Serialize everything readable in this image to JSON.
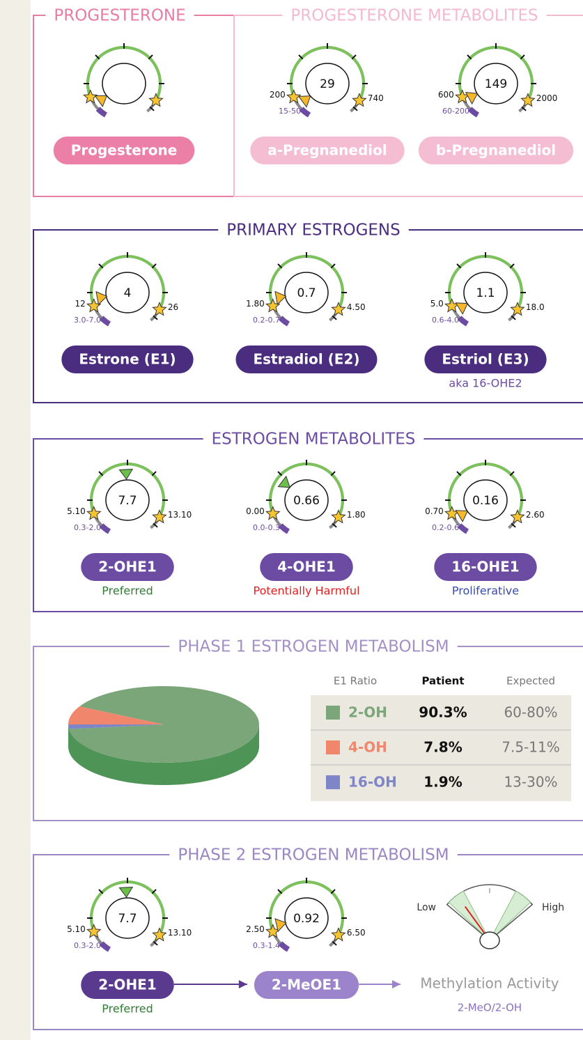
{
  "sections": [
    {
      "title": "PROGESTERONE",
      "pill_color": "#ec7fa6",
      "items": [
        {
          "label": "Progesterone"
        }
      ]
    },
    {
      "title": "PROGESTERONE METABOLITES",
      "pill_color": "#f5bdd1",
      "items": [
        {
          "label": "a-Pregnanediol",
          "value": "29",
          "low": "200",
          "high": "740",
          "range": "15-50"
        },
        {
          "label": "b-Pregnanediol",
          "value": "149",
          "low": "600",
          "high": "2000",
          "range": "60-200"
        }
      ]
    },
    {
      "title": "PRIMARY ESTROGENS",
      "pill_color": "#4b2d7f",
      "items": [
        {
          "label": "Estrone (E1)",
          "value": "4",
          "low": "12",
          "high": "26",
          "range": "3.0-7.0"
        },
        {
          "label": "Estradiol (E2)",
          "value": "0.7",
          "low": "1.80",
          "high": "4.50",
          "range": "0.2-0.7"
        },
        {
          "label": "Estriol (E3)",
          "value": "1.1",
          "low": "5.0",
          "high": "18.0",
          "range": "0.6-4.0",
          "note": "aka 16-OHE2",
          "note_color": "#6c4ca3"
        }
      ]
    },
    {
      "title": "ESTROGEN METABOLITES",
      "pill_color": "#6c4ca3",
      "items": [
        {
          "label": "2-OHE1",
          "value": "7.7",
          "low": "5.10",
          "high": "13.10",
          "range": "0.3-2.0",
          "note": "Preferred",
          "note_color": "#2e7d32",
          "pointer_color": "#6cc04a"
        },
        {
          "label": "4-OHE1",
          "value": "0.66",
          "low": "0.00",
          "high": "1.80",
          "range": "0.0-0.3",
          "note": "Potentially Harmful",
          "note_color": "#e02020",
          "pointer_color": "#6cc04a"
        },
        {
          "label": "16-OHE1",
          "value": "0.16",
          "low": "0.70",
          "high": "2.60",
          "range": "0.2-0.6",
          "note": "Proliferative",
          "note_color": "#3a4aa8"
        }
      ]
    },
    {
      "title": "PHASE 1 ESTROGEN METABOLISM",
      "table": {
        "headers": [
          "E1 Ratio",
          "Patient",
          "Expected"
        ],
        "rows": [
          {
            "name": "2-OH",
            "color": "#7aa67a",
            "value": 90.3,
            "value_label": "90.3%",
            "expected": "60-80%"
          },
          {
            "name": "4-OH",
            "color": "#f0876c",
            "value": 7.8,
            "value_label": "7.8%",
            "expected": "7.5-11%"
          },
          {
            "name": "16-OH",
            "color": "#7e86c8",
            "value": 1.9,
            "value_label": "1.9%",
            "expected": "13-30%"
          }
        ]
      }
    },
    {
      "title": "PHASE 2 ESTROGEN METABOLISM",
      "items": [
        {
          "label": "2-OHE1",
          "value": "7.7",
          "low": "5.10",
          "high": "13.10",
          "range": "0.3-2.0",
          "note": "Preferred",
          "note_color": "#2e7d32",
          "pointer_color": "#6cc04a",
          "pill_color": "#5a3a8f"
        },
        {
          "label": "2-MeOE1",
          "value": "0.92",
          "low": "2.50",
          "high": "6.50",
          "range": "0.3-1.4",
          "pill_color": "#9c84cc"
        }
      ],
      "activity": {
        "low": "Low",
        "high": "High",
        "label": "Methylation Activity",
        "sublabel": "2-MeO/2-OH"
      }
    }
  ]
}
